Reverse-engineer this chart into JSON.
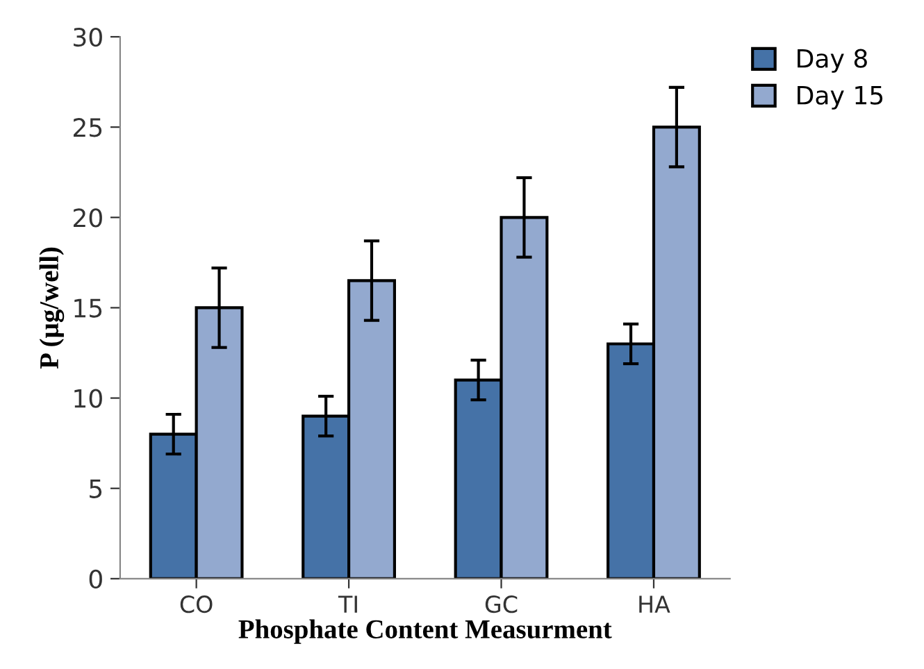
{
  "chart_data": {
    "type": "bar",
    "xlabel": "Phosphate Content Measurment",
    "ylabel": "P (µg/well)",
    "categories": [
      "CO",
      "TI",
      "GC",
      "HA"
    ],
    "series": [
      {
        "name": "Day 8",
        "color": "#4572a7",
        "values": [
          8,
          9,
          11,
          13
        ],
        "errors": [
          1.1,
          1.1,
          1.1,
          1.1
        ]
      },
      {
        "name": "Day 15",
        "color": "#93a9cf",
        "values": [
          15,
          16.5,
          20,
          25
        ],
        "errors": [
          2.2,
          2.2,
          2.2,
          2.2
        ]
      }
    ],
    "ylim": [
      0,
      30
    ],
    "yticks": [
      0,
      5,
      10,
      15,
      20,
      25,
      30
    ],
    "grid": false,
    "legend": "top right"
  }
}
